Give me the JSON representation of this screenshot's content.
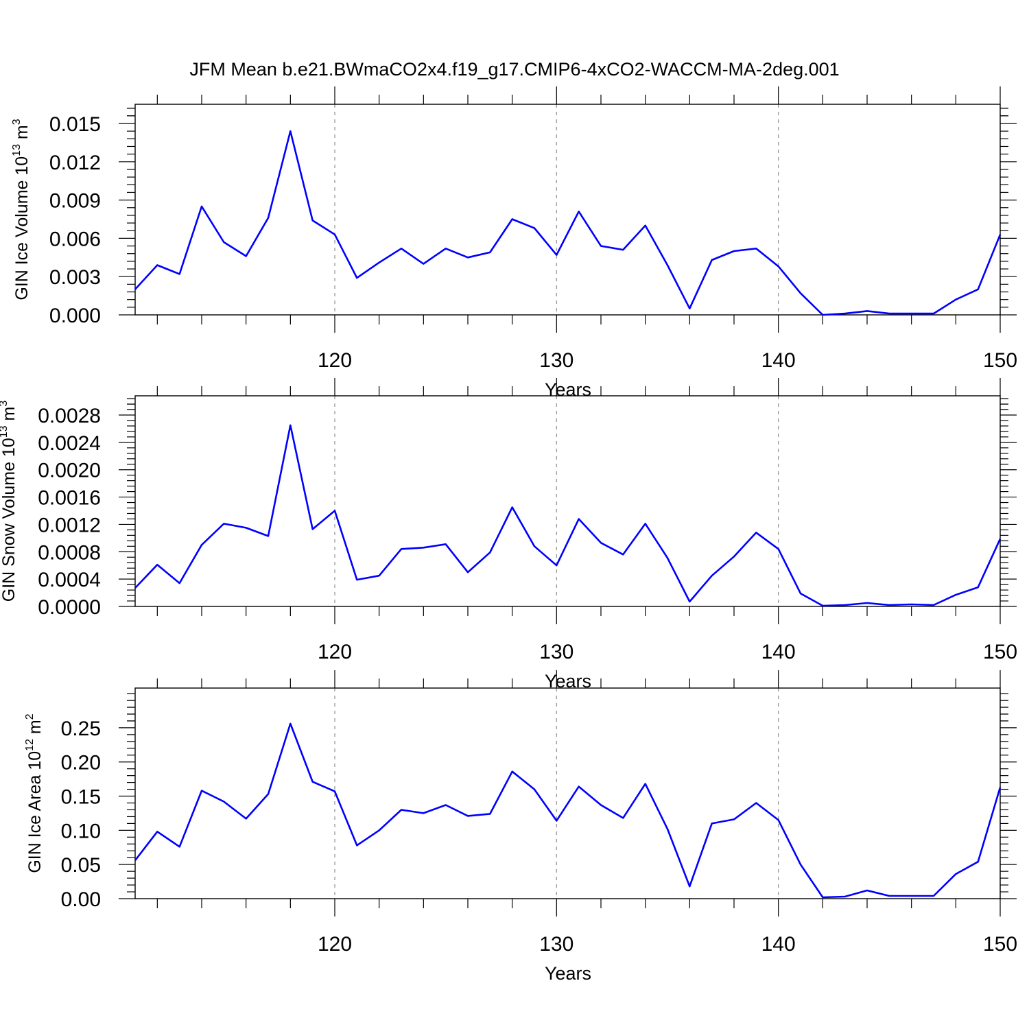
{
  "title": "JFM Mean b.e21.BWmaCO2x4.f19_g17.CMIP6-4xCO2-WACCM-MA-2deg.001",
  "chart_data": [
    {
      "type": "line",
      "title": "",
      "xlabel": "Years",
      "ylabel": "GIN Ice Volume 10",
      "ylabel_exp": "13",
      "ylabel_unit": "m",
      "ylabel_unit_exp": "3",
      "xlim": [
        111,
        150
      ],
      "ylim": [
        0,
        0.015
      ],
      "xticks": [
        "120",
        "130",
        "140",
        "150"
      ],
      "yticks": [
        "0.000",
        "0.003",
        "0.006",
        "0.009",
        "0.012",
        "0.015"
      ],
      "grid": "dashed vertical at major x ticks",
      "color": "#0000ff",
      "x": [
        111,
        112,
        113,
        114,
        115,
        116,
        117,
        118,
        119,
        120,
        121,
        122,
        123,
        124,
        125,
        126,
        127,
        128,
        129,
        130,
        131,
        132,
        133,
        134,
        135,
        136,
        137,
        138,
        139,
        140,
        141,
        142,
        143,
        144,
        145,
        146,
        147,
        148,
        149,
        150
      ],
      "values": [
        0.002,
        0.0039,
        0.0032,
        0.0085,
        0.0057,
        0.0046,
        0.0076,
        0.0144,
        0.0074,
        0.0063,
        0.0029,
        0.0041,
        0.0052,
        0.004,
        0.0052,
        0.0045,
        0.0049,
        0.0075,
        0.0068,
        0.0047,
        0.0081,
        0.0054,
        0.0051,
        0.007,
        0.0039,
        0.0005,
        0.0043,
        0.005,
        0.0052,
        0.0038,
        0.0017,
        0.0,
        0.0001,
        0.0003,
        0.0001,
        0.0001,
        0.0001,
        0.0012,
        0.002,
        0.0063
      ]
    },
    {
      "type": "line",
      "title": "",
      "xlabel": "Years",
      "ylabel": "GIN Snow Volume 10",
      "ylabel_exp": "13",
      "ylabel_unit": "m",
      "ylabel_unit_exp": "3",
      "xlim": [
        111,
        150
      ],
      "ylim": [
        0,
        0.0028
      ],
      "xticks": [
        "120",
        "130",
        "140",
        "150"
      ],
      "yticks": [
        "0.0000",
        "0.0004",
        "0.0008",
        "0.0012",
        "0.0016",
        "0.0020",
        "0.0024",
        "0.0028"
      ],
      "grid": "dashed vertical at major x ticks",
      "color": "#0000ff",
      "x": [
        111,
        112,
        113,
        114,
        115,
        116,
        117,
        118,
        119,
        120,
        121,
        122,
        123,
        124,
        125,
        126,
        127,
        128,
        129,
        130,
        131,
        132,
        133,
        134,
        135,
        136,
        137,
        138,
        139,
        140,
        141,
        142,
        143,
        144,
        145,
        146,
        147,
        148,
        149,
        150
      ],
      "values": [
        0.00027,
        0.00061,
        0.00034,
        0.0009,
        0.00121,
        0.00115,
        0.00103,
        0.00265,
        0.00113,
        0.0014,
        0.00039,
        0.00045,
        0.00084,
        0.00086,
        0.00091,
        0.0005,
        0.00079,
        0.00145,
        0.00088,
        0.0006,
        0.00128,
        0.00093,
        0.00076,
        0.00121,
        0.00071,
        7e-05,
        0.00045,
        0.00073,
        0.00108,
        0.00084,
        0.00019,
        1e-05,
        2e-05,
        5e-05,
        2e-05,
        3e-05,
        2e-05,
        0.00017,
        0.00028,
        0.00099
      ]
    },
    {
      "type": "line",
      "title": "",
      "xlabel": "Years",
      "ylabel": "GIN Ice Area 10",
      "ylabel_exp": "12",
      "ylabel_unit": "m",
      "ylabel_unit_exp": "2",
      "xlim": [
        111,
        150
      ],
      "ylim": [
        0,
        0.28
      ],
      "xticks": [
        "120",
        "130",
        "140",
        "150"
      ],
      "yticks": [
        "0.00",
        "0.05",
        "0.10",
        "0.15",
        "0.20",
        "0.25"
      ],
      "grid": "dashed vertical at major x ticks",
      "color": "#0000ff",
      "x": [
        111,
        112,
        113,
        114,
        115,
        116,
        117,
        118,
        119,
        120,
        121,
        122,
        123,
        124,
        125,
        126,
        127,
        128,
        129,
        130,
        131,
        132,
        133,
        134,
        135,
        136,
        137,
        138,
        139,
        140,
        141,
        142,
        143,
        144,
        145,
        146,
        147,
        148,
        149,
        150
      ],
      "values": [
        0.056,
        0.098,
        0.076,
        0.158,
        0.142,
        0.117,
        0.153,
        0.256,
        0.171,
        0.157,
        0.078,
        0.1,
        0.13,
        0.125,
        0.137,
        0.121,
        0.124,
        0.186,
        0.16,
        0.114,
        0.164,
        0.137,
        0.118,
        0.168,
        0.102,
        0.018,
        0.11,
        0.116,
        0.14,
        0.115,
        0.05,
        0.002,
        0.003,
        0.012,
        0.004,
        0.004,
        0.004,
        0.036,
        0.054,
        0.163
      ]
    }
  ]
}
